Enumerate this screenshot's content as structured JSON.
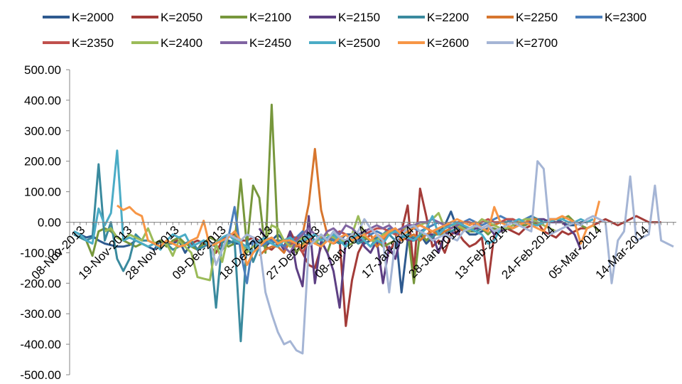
{
  "chart_data": {
    "type": "line",
    "title": "",
    "xlabel": "",
    "ylabel": "",
    "ylim": [
      -500,
      500
    ],
    "y_ticks": [
      500,
      400,
      300,
      200,
      100,
      0,
      -100,
      -200,
      -300,
      -400,
      -500
    ],
    "y_tick_labels": [
      "500.00",
      "400.00",
      "300.00",
      "200.00",
      "100.00",
      "0.00",
      "-100.00",
      "-200.00",
      "-300.00",
      "-400.00",
      "-500.00"
    ],
    "x_tick_labels": [
      "08-Nov-2013",
      "19-Nov-2013",
      "28-Nov-2013",
      "09-Dec-2013",
      "18-Dec-2013",
      "27-Dec-2013",
      "08-Jan-2014",
      "17-Jan-2014",
      "28-Jan-2014",
      "13-Feb-2014",
      "24-Feb-2014",
      "05-Mar-2014",
      "14-Mar-2014"
    ],
    "grid": false,
    "legend_position": "top",
    "series": [
      {
        "name": "K=2000",
        "color": "#2E5A8F",
        "start": 0,
        "values": [
          -30,
          -40,
          -50,
          -45,
          -60,
          -70,
          -75,
          -80,
          -80,
          -75,
          -60,
          -70,
          -80,
          -90,
          -60,
          -70,
          -70,
          -60,
          -100,
          -70,
          -90,
          -60,
          -70,
          -80,
          -90,
          -60,
          -70,
          -70,
          -80,
          -60,
          -70,
          -80,
          -60,
          -40,
          -60,
          -50,
          -50,
          -60,
          -70,
          -60,
          -50,
          -60,
          -50,
          -60,
          -40,
          -40,
          -60,
          -70,
          -60,
          -50,
          -60,
          -30,
          -20,
          -230,
          -60,
          -60,
          -40,
          -70,
          -50,
          -30,
          -10,
          35,
          -20,
          -20,
          -40,
          -40,
          -30,
          -20,
          -20,
          -30,
          -20,
          -20,
          -10,
          -10,
          0,
          -10,
          0,
          10,
          10,
          0,
          -10,
          -10,
          0,
          0,
          10
        ]
      },
      {
        "name": "K=2050",
        "color": "#A33B38",
        "start": 16,
        "values": [
          -60,
          -60,
          -70,
          -70,
          -60,
          -70,
          -80,
          -100,
          -60,
          -40,
          -40,
          -60,
          -60,
          -50,
          -60,
          -80,
          -90,
          -70,
          -80,
          -30,
          -70,
          -100,
          -140,
          -150,
          -80,
          -60,
          -70,
          -60,
          -340,
          -190,
          -100,
          -60,
          -40,
          -80,
          -50,
          -100,
          -60,
          -30,
          55,
          -160,
          110,
          20,
          -80,
          -60,
          -100,
          -40,
          -30,
          -60,
          -80,
          -70,
          -50,
          -200,
          -40,
          -30,
          -20,
          -30,
          -40,
          -20,
          -10,
          0,
          -30,
          -40,
          -50,
          -30,
          -40,
          -30,
          -20,
          -20,
          -10,
          0,
          10,
          0,
          -10,
          0,
          10,
          20,
          10,
          0,
          0,
          0
        ]
      },
      {
        "name": "K=2100",
        "color": "#77973C",
        "start": 1,
        "values": [
          -50,
          -60,
          -110,
          -30,
          -20,
          -30,
          -50,
          -60,
          -70,
          -80,
          -70,
          -80,
          -70,
          -60,
          -80,
          -60,
          -50,
          -70,
          -80,
          -90,
          -70,
          -50,
          -60,
          -60,
          -80,
          -70,
          140,
          -80,
          120,
          80,
          -100,
          385,
          -60,
          -60,
          -50,
          -100,
          -70,
          -60,
          -40,
          -60,
          -100,
          -40,
          -50,
          -80,
          -70,
          -40,
          -50,
          -60,
          -60,
          -80,
          -70,
          -60,
          -40,
          -30,
          -200,
          -30,
          -60,
          -40,
          -40,
          -40,
          -20,
          -10,
          -10,
          -30,
          -30,
          -20,
          -40,
          -20,
          -30,
          -20,
          -20,
          -10,
          -10,
          0,
          -10,
          0,
          0,
          10,
          10,
          20,
          0,
          -10,
          -20,
          -10,
          -30
        ]
      },
      {
        "name": "K=2150",
        "color": "#5D3F83",
        "start": 30,
        "values": [
          -20,
          -50,
          -60,
          -60,
          -90,
          -30,
          -150,
          -210,
          20,
          -200,
          -60,
          -100,
          -160,
          -280,
          -60,
          -60,
          -40,
          -80,
          -100,
          -60,
          -200,
          -80,
          -120,
          -40,
          -60,
          -50,
          -60,
          -40,
          -40,
          -100,
          -40,
          -30,
          -40,
          -10,
          -30,
          -20,
          -20,
          -10,
          -40,
          -30,
          -20,
          -10,
          -10,
          0,
          0,
          10,
          10,
          0,
          0,
          0,
          -20,
          -40,
          -90
        ]
      },
      {
        "name": "K=2200",
        "color": "#3A8A9E",
        "start": 0,
        "values": [
          -40,
          -50,
          -60,
          -50,
          190,
          -60,
          0,
          -120,
          -160,
          -120,
          -40,
          -60,
          -60,
          -70,
          -80,
          -70,
          -90,
          -80,
          -70,
          -60,
          -90,
          -80,
          -70,
          -280,
          -60,
          -70,
          -60,
          -390,
          -60,
          -130,
          -80,
          -60,
          -70,
          -60,
          -80,
          -70,
          -60,
          -50,
          -40,
          -60,
          -80,
          -50,
          -60,
          -70,
          -60,
          -50,
          -70,
          -60,
          -80,
          -50,
          -60,
          -40,
          -60,
          -50,
          -40,
          -50,
          -60,
          -40,
          -50,
          -20,
          -30,
          -30,
          -20,
          -10,
          -20,
          -30,
          -20,
          -10,
          -10,
          0,
          0,
          10,
          0,
          10,
          20,
          10,
          0,
          0
        ]
      },
      {
        "name": "K=2250",
        "color": "#D7762E",
        "start": 30,
        "values": [
          -110,
          -90,
          -80,
          -80,
          -100,
          -60,
          -80,
          -40,
          60,
          240,
          40,
          -40,
          -60,
          -50,
          -60,
          -40,
          -50,
          -30,
          -40,
          -80,
          -60,
          -30,
          -40,
          -60,
          -50,
          -40,
          -60,
          -40,
          -30,
          -40,
          -30,
          -20,
          -10,
          -30,
          -20,
          -10,
          -20,
          -10,
          -10,
          0,
          10,
          10,
          0,
          0,
          10,
          10
        ]
      },
      {
        "name": "K=2300",
        "color": "#4A7EBB",
        "start": 22,
        "values": [
          -80,
          -70,
          -60,
          -50,
          50,
          -100,
          -200,
          -60,
          -80,
          -70,
          -60,
          -70,
          -80,
          -60,
          -50,
          -30,
          -60,
          -40,
          -50,
          -40,
          -60,
          -30,
          -40,
          -50,
          -60,
          -30,
          -40,
          -30,
          -40,
          -20,
          -30,
          -20,
          -10,
          -20,
          -30,
          -20,
          -10,
          0,
          -10,
          -10,
          0,
          0,
          10,
          0,
          -10,
          0,
          10,
          20,
          10,
          0,
          0,
          10,
          20
        ]
      },
      {
        "name": "K=2350",
        "color": "#C0504D",
        "start": 34,
        "values": [
          -60,
          -80,
          -50,
          -100,
          -60,
          -40,
          -50,
          -60,
          -40,
          -30,
          -40,
          -60,
          -50,
          -40,
          -30,
          -20,
          -20,
          -30,
          -40,
          -30,
          -20,
          -10,
          -10,
          -20,
          -30,
          -20,
          -10,
          -10,
          0,
          0,
          0,
          -10,
          0,
          10,
          0,
          0,
          10,
          10,
          0
        ]
      },
      {
        "name": "K=2400",
        "color": "#9BBB59",
        "start": 5,
        "values": [
          -30,
          -20,
          -50,
          -60,
          -40,
          -50,
          -60,
          -20,
          -70,
          -80,
          -70,
          -110,
          -60,
          -80,
          -100,
          -180,
          -185,
          -190,
          -70,
          -130,
          -40,
          -60,
          -60,
          -100,
          -80,
          -70,
          -60,
          -10,
          -20,
          -60,
          -80,
          -70,
          -50,
          -60,
          -70,
          -50,
          -40,
          -50,
          -60,
          -60,
          -40,
          20,
          -40,
          -60,
          -60,
          -40,
          -30,
          -30,
          -20,
          -20,
          -10,
          -10,
          0,
          10,
          30,
          -20,
          -10,
          -10,
          -20,
          -30,
          -10,
          10,
          0,
          -10,
          -20,
          -20,
          -10,
          0,
          10,
          10,
          0,
          -10,
          -20,
          -30
        ]
      },
      {
        "name": "K=2450",
        "color": "#8064A2",
        "start": 34,
        "values": [
          -80,
          -100,
          -60,
          -40,
          -20,
          -40,
          -60,
          -30,
          -20,
          -40,
          -10,
          -20,
          -40,
          -30,
          -20,
          -10,
          -20,
          -10,
          -30,
          -20,
          -10,
          -10,
          0,
          0,
          10,
          0,
          -10,
          -20,
          -10,
          0
        ]
      },
      {
        "name": "K=2500",
        "color": "#4BACC6",
        "start": 0,
        "values": [
          -30,
          -40,
          -60,
          -70,
          45,
          -10,
          30,
          235,
          -60,
          -50,
          -60,
          -70,
          -80,
          -70,
          -90,
          -60,
          -40,
          -50,
          -40,
          -80,
          -70,
          -60,
          -80,
          -70,
          -50,
          -40,
          -60,
          -70,
          -80,
          -100,
          -60,
          -50,
          -70,
          -80,
          -60,
          -50,
          -70,
          -60,
          -50,
          -40,
          -60,
          -50,
          -40,
          -60,
          -80,
          -50,
          -40,
          -60,
          -80,
          -60,
          -70,
          -40,
          -30,
          -40,
          -50,
          -60,
          -40,
          -20,
          20,
          -40,
          -20,
          -10,
          0,
          -10,
          -20,
          -30,
          -40,
          -70,
          -60,
          -20,
          -10,
          0,
          10,
          0,
          -10,
          -10,
          0,
          0,
          10,
          10,
          0,
          0,
          10,
          0,
          10
        ]
      },
      {
        "name": "K=2600",
        "color": "#F79646",
        "start": 7,
        "values": [
          55,
          40,
          50,
          30,
          20,
          -60,
          -70,
          -80,
          -60,
          -70,
          -80,
          -75,
          -60,
          -50,
          5,
          -80,
          -70,
          -60,
          -50,
          -30,
          -60,
          -140,
          -100,
          -80,
          -60,
          -50,
          -70,
          -60,
          -60,
          -70,
          -80,
          -60,
          -70,
          -80,
          -60,
          -70,
          -50,
          -40,
          -60,
          -50,
          -40,
          -60,
          -40,
          -50,
          -30,
          -20,
          -40,
          -30,
          -20,
          -10,
          -20,
          -30,
          -20,
          -10,
          0,
          10,
          0,
          -10,
          0,
          -20,
          -30,
          50,
          0,
          -10,
          -20,
          -10,
          0,
          -10,
          -20,
          -30,
          10,
          10,
          20,
          10,
          0,
          -70,
          -20,
          -10,
          70
        ]
      },
      {
        "name": "K=2700",
        "color": "#A5B5D5",
        "start": 22,
        "values": [
          -60,
          -140,
          -90,
          -40,
          -50,
          -60,
          -40,
          -50,
          -70,
          -230,
          -300,
          -360,
          -400,
          -390,
          -420,
          -430,
          -80,
          -60,
          -40,
          -60,
          -30,
          -50,
          -60,
          -40,
          -30,
          10,
          -20,
          -40,
          -60,
          -230,
          -60,
          -40,
          -20,
          -10,
          -30,
          -40,
          -60,
          -50,
          -40,
          -50,
          -60,
          -30,
          -20,
          -10,
          -20,
          -10,
          -30,
          -20,
          -10,
          0,
          -10,
          -20,
          -30,
          200,
          175,
          -40,
          -30,
          -20,
          -10,
          0,
          -10,
          10,
          20,
          10,
          0,
          -200,
          -60,
          -30,
          150,
          -60,
          -50,
          -40,
          120,
          -60,
          -70,
          -80
        ]
      }
    ]
  }
}
